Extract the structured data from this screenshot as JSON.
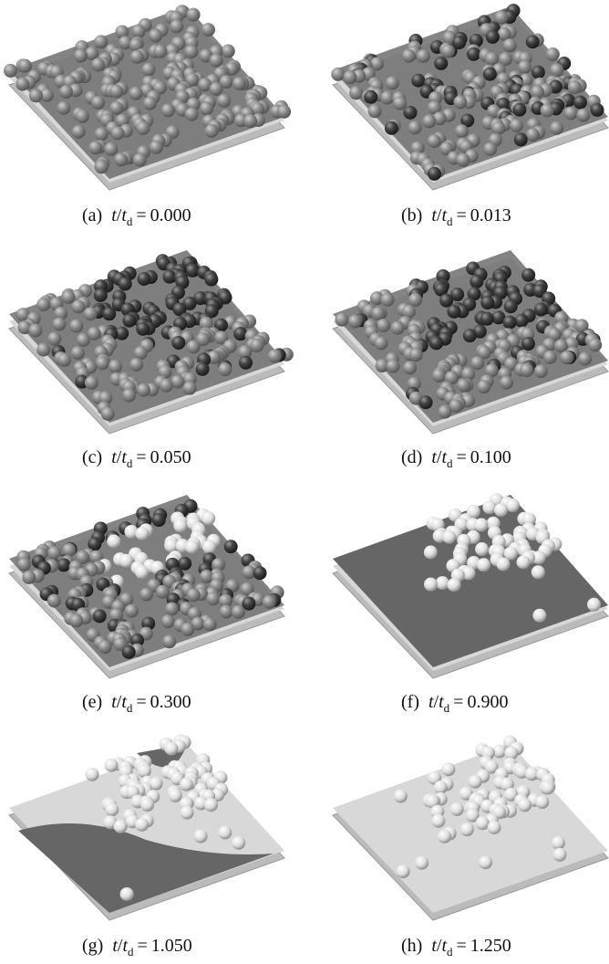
{
  "symbol": "t",
  "divider": "/",
  "subscript": "d",
  "operator": "=",
  "panels": [
    {
      "label": "(a)",
      "value": "0.000"
    },
    {
      "label": "(b)",
      "value": "0.013"
    },
    {
      "label": "(c)",
      "value": "0.050"
    },
    {
      "label": "(d)",
      "value": "0.100"
    },
    {
      "label": "(e)",
      "value": "0.300"
    },
    {
      "label": "(f)",
      "value": "0.900"
    },
    {
      "label": "(g)",
      "value": "1.050"
    },
    {
      "label": "(h)",
      "value": "1.250"
    }
  ]
}
